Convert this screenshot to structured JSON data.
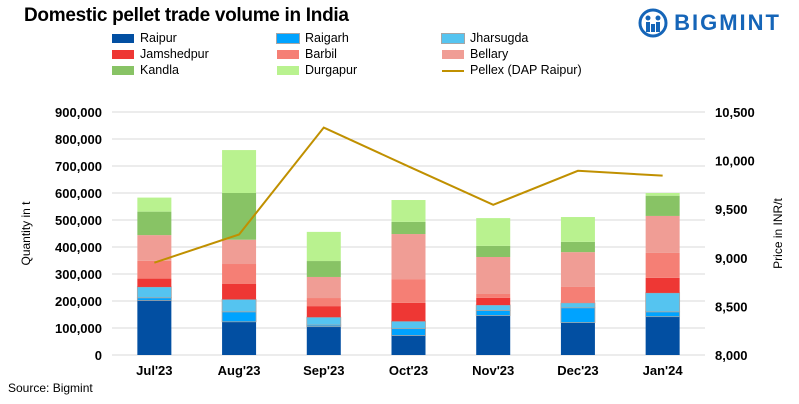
{
  "title": "Domestic pellet trade volume in India",
  "logo": {
    "text": "BIGMINT",
    "color": "#1565b8"
  },
  "source": "Source: Bigmint",
  "chart_data": {
    "type": "bar",
    "stacked": true,
    "title": "Domestic pellet trade volume in India",
    "categories": [
      "Jul'23",
      "Aug'23",
      "Sep'23",
      "Oct'23",
      "Nov'23",
      "Dec'23",
      "Jan'24"
    ],
    "ylabel": "Quantity in t",
    "y2label": "Price in INR/t",
    "ylim": [
      0,
      900000
    ],
    "y2lim": [
      8000,
      10500
    ],
    "yticks": [
      "0",
      "100,000",
      "200,000",
      "300,000",
      "400,000",
      "500,000",
      "600,000",
      "700,000",
      "800,000",
      "900,000"
    ],
    "y2ticks": [
      "8,000",
      "8,500",
      "9,000",
      "9,500",
      "10,000",
      "10,500"
    ],
    "grid": true,
    "legend_position": "top",
    "series": [
      {
        "name": "Raipur",
        "color": "#024FA2",
        "values": [
          202000,
          123000,
          105000,
          72000,
          146000,
          120000,
          142000
        ]
      },
      {
        "name": "Raigarh",
        "color": "#00A3FF",
        "values": [
          10000,
          37000,
          6000,
          26000,
          19000,
          55000,
          18000
        ]
      },
      {
        "name": "Jharsugda",
        "color": "#55C4F0",
        "values": [
          40000,
          46000,
          29000,
          27000,
          20000,
          18000,
          70000
        ]
      },
      {
        "name": "Jamshedpur",
        "color": "#EE3734",
        "values": [
          31000,
          57000,
          41000,
          68000,
          27000,
          0,
          56000
        ]
      },
      {
        "name": "Barbil",
        "color": "#F57F75",
        "values": [
          66000,
          74000,
          30000,
          88000,
          14000,
          59000,
          92000
        ]
      },
      {
        "name": "Bellary",
        "color": "#F09D95",
        "values": [
          95000,
          90000,
          78000,
          167000,
          137000,
          129000,
          137000
        ]
      },
      {
        "name": "Kandla",
        "color": "#88C365",
        "values": [
          87000,
          173000,
          59000,
          45000,
          41000,
          38000,
          75000
        ]
      },
      {
        "name": "Durgapur",
        "color": "#B9F28F",
        "values": [
          52000,
          159000,
          108000,
          81000,
          103000,
          92000,
          10000
        ]
      }
    ],
    "line_series": {
      "name": "Pellex (DAP Raipur)",
      "color": "#C09000",
      "axis": "right",
      "values": [
        8950,
        9240,
        10340,
        9940,
        9545,
        9895,
        9845
      ]
    }
  }
}
